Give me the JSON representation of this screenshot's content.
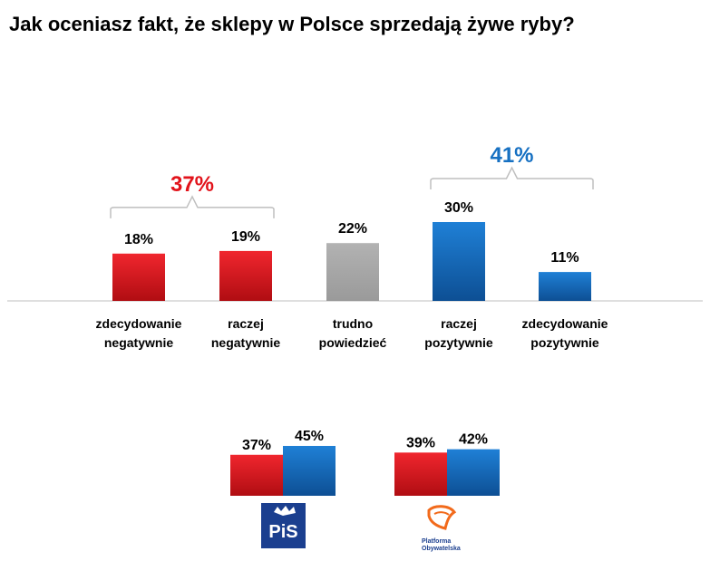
{
  "title": "Jak oceniasz fakt, że sklepy w Polsce sprzedają żywe ryby?",
  "colors": {
    "negative": "#e2131b",
    "neutral": "#a6a6a6",
    "positive": "#1670c2",
    "negative_group_label": "#e2131b",
    "positive_group_label": "#1670c2",
    "axis": "#bfbfbf",
    "bracket": "#bfbfbf"
  },
  "chart_data": [
    {
      "type": "bar",
      "categories": [
        [
          "zdecydowanie",
          "negatywnie"
        ],
        [
          "raczej",
          "negatywnie"
        ],
        [
          "trudno",
          "powiedzieć"
        ],
        [
          "raczej",
          "pozytywnie"
        ],
        [
          "zdecydowanie",
          "pozytywnie"
        ]
      ],
      "values": [
        18,
        19,
        22,
        30,
        11
      ],
      "value_labels": [
        "18%",
        "19%",
        "22%",
        "30%",
        "11%"
      ],
      "bar_colors": [
        "negative",
        "negative",
        "neutral",
        "positive",
        "positive"
      ],
      "groups": [
        {
          "label": "37%",
          "covers": [
            0,
            1
          ],
          "color": "negative_group_label"
        },
        {
          "label": "41%",
          "covers": [
            3,
            4
          ],
          "color": "positive_group_label"
        }
      ],
      "ylim": [
        0,
        30
      ]
    },
    {
      "type": "bar",
      "panels": [
        {
          "logo": "pis-logo",
          "values": [
            37,
            45
          ],
          "value_labels": [
            "37%",
            "45%"
          ]
        },
        {
          "logo": "platforma-obywatelska-logo",
          "values": [
            39,
            42
          ],
          "value_labels": [
            "39%",
            "42%"
          ]
        }
      ],
      "bar_colors": [
        "negative",
        "positive"
      ],
      "ylim": [
        0,
        45
      ]
    }
  ],
  "logos": {
    "pis": {
      "text": "PiS"
    },
    "po": {
      "line1": "Platforma",
      "line2": "Obywatelska"
    }
  }
}
